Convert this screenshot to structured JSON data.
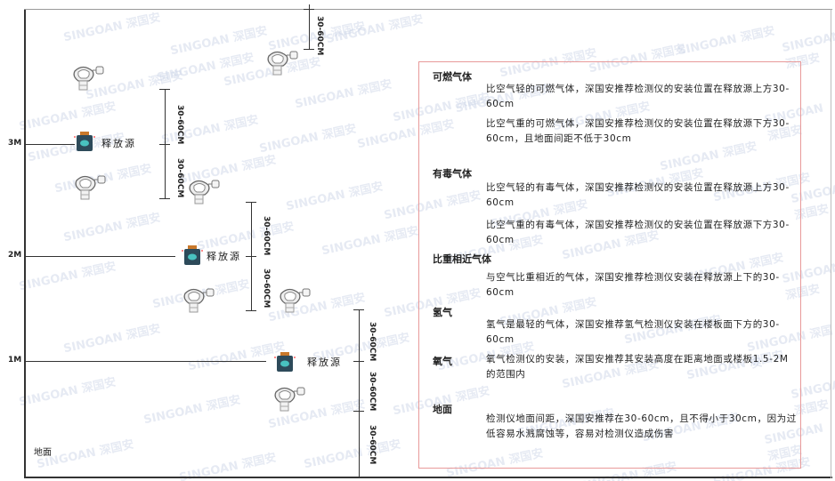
{
  "levels": {
    "m3": "3M",
    "m2": "2M",
    "m1": "1M",
    "ground": "地面"
  },
  "source_label": "释放源",
  "dim_label": "30-60CM",
  "watermark": "SINGOAN 深国安",
  "panel": {
    "flammable": {
      "title": "可燃气体",
      "light": "比空气轻的可燃气体，深国安推荐检测仪的安装位置在释放源上方30-60cm",
      "heavy": "比空气重的可燃气体，深国安推荐检测仪的安装位置在释放源下方30-60cm，且地面间距不低于30cm"
    },
    "toxic": {
      "title": "有毒气体",
      "light": "比空气轻的有毒气体，深国安推荐检测仪的安装位置在释放源上方30-60cm",
      "heavy": "比空气重的有毒气体，深国安推荐检测仪的安装位置在释放源下方30-60cm"
    },
    "similar": {
      "title": "比重相近气体",
      "text": "与空气比重相近的气体，深国安推荐检测仪安装在释放源上下的30-60cm"
    },
    "hydrogen": {
      "title": "氢气",
      "text": "氢气是最轻的气体，深国安推荐氢气检测仪安装在楼板面下方的30-60cm"
    },
    "oxygen": {
      "title": "氧气",
      "text": "氧气检测仪的安装，深国安推荐其安装高度在距离地面或楼板1.5-2M的范围内"
    },
    "ground": {
      "title": "地面",
      "text": "检测仪地面间距，深国安推荐在30-60cm，且不得小于30cm，因为过低容易水溅腐蚀等，容易对检测仪造成伤害"
    }
  },
  "colors": {
    "panel_border": "#e89a9a",
    "source_body": "#2d4a5a",
    "source_accent": "#49c2c0",
    "source_cap": "#c9782a"
  }
}
